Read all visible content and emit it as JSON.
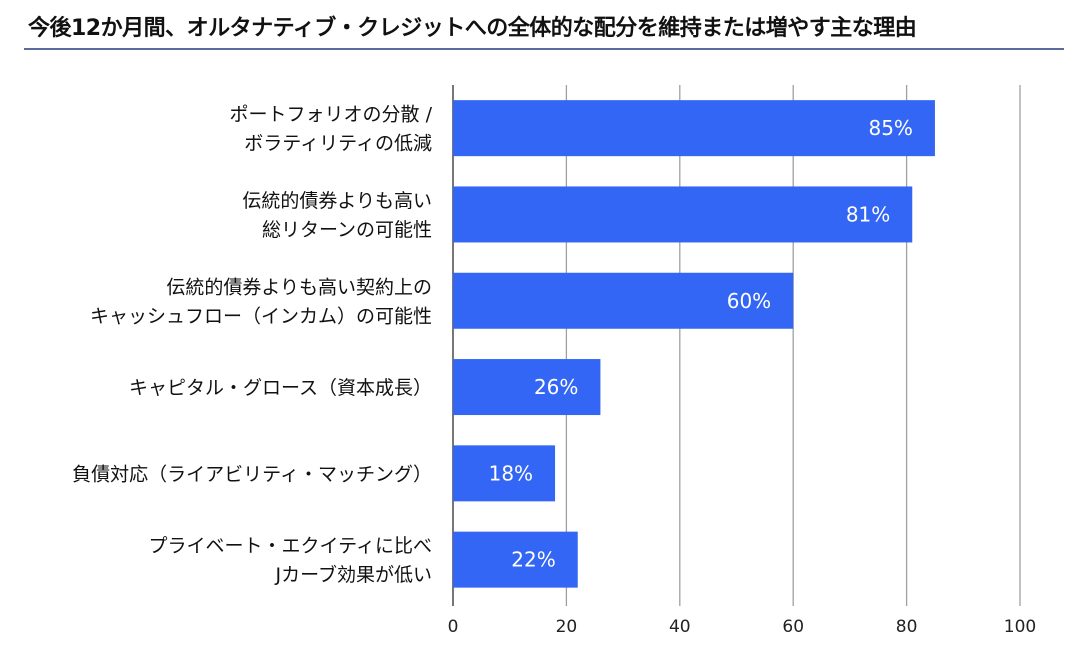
{
  "chart_data": {
    "type": "bar",
    "orientation": "horizontal",
    "title": "今後12か月間、オルタナティブ・クレジットへの全体的な配分を維持または増やす主な理由",
    "categories": [
      [
        "ポートフォリオの分散 /",
        "ボラティリティの低減"
      ],
      [
        "伝統的債券よりも高い",
        "総リターンの可能性"
      ],
      [
        "伝統的債券よりも高い契約上の",
        "キャッシュフロー（インカム）の可能性"
      ],
      [
        "キャピタル・グロース（資本成長）"
      ],
      [
        "負債対応（ライアビリティ・マッチング）"
      ],
      [
        "プライベート・エクイティに比べ",
        "Jカーブ効果が低い"
      ]
    ],
    "values": [
      85,
      81,
      60,
      26,
      18,
      22
    ],
    "data_labels": [
      "85%",
      "81%",
      "60%",
      "26%",
      "18%",
      "22%"
    ],
    "xlim": [
      0,
      100
    ],
    "xticks": [
      "0",
      "20",
      "40",
      "60",
      "80",
      "100"
    ],
    "grid": "vertical",
    "bar_color": "#3366f5",
    "grid_color": "#a0a0a0"
  }
}
